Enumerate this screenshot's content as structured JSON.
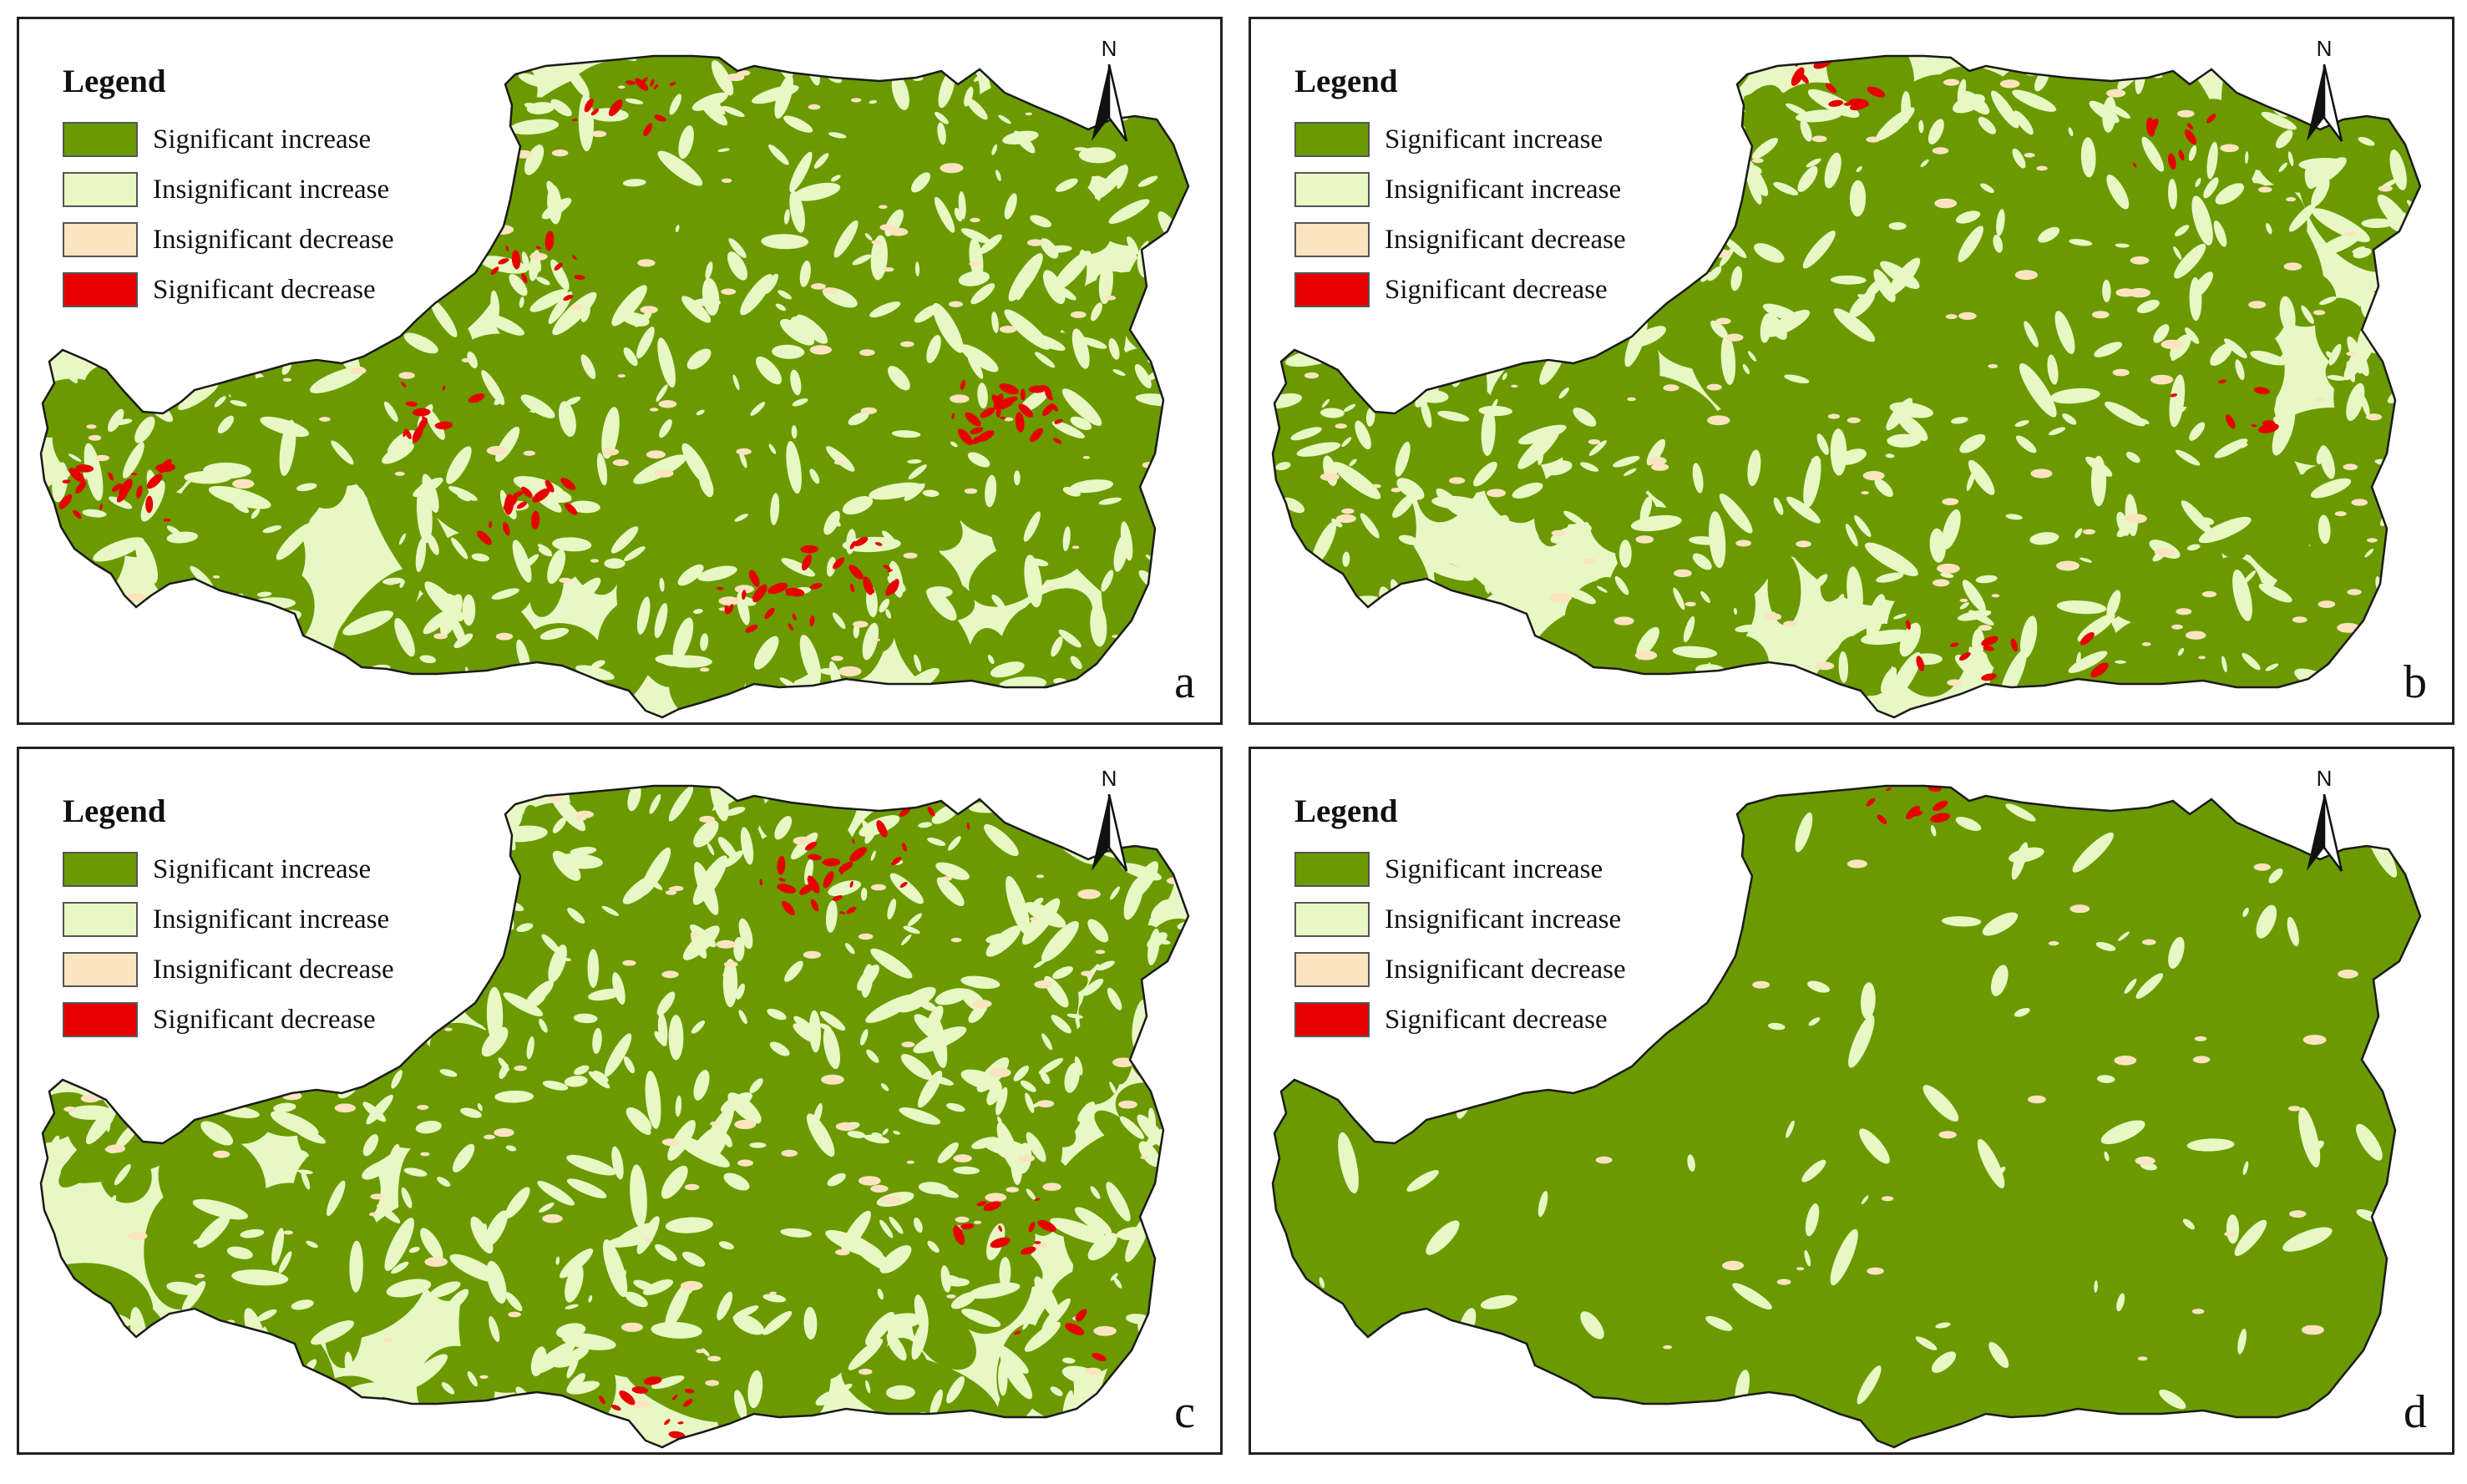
{
  "legend": {
    "title": "Legend",
    "classes": [
      {
        "label": "Significant increase",
        "color": "#6a9a00"
      },
      {
        "label": "Insignificant increase",
        "color": "#e8f8c4"
      },
      {
        "label": "Insignificant decrease",
        "color": "#fbe4c0"
      },
      {
        "label": "Significant decrease",
        "color": "#e60000"
      }
    ]
  },
  "north_arrow": {
    "letter": "N"
  },
  "panels": [
    {
      "id": "a",
      "letter": "a",
      "share": {
        "significant_increase": 0.55,
        "insignificant_increase": 0.33,
        "insignificant_decrease": 0.05,
        "significant_decrease": 0.07
      }
    },
    {
      "id": "b",
      "letter": "b",
      "share": {
        "significant_increase": 0.6,
        "insignificant_increase": 0.33,
        "insignificant_decrease": 0.05,
        "significant_decrease": 0.02
      }
    },
    {
      "id": "c",
      "letter": "c",
      "share": {
        "significant_increase": 0.52,
        "insignificant_increase": 0.4,
        "insignificant_decrease": 0.05,
        "significant_decrease": 0.03
      }
    },
    {
      "id": "d",
      "letter": "d",
      "share": {
        "significant_increase": 0.9,
        "insignificant_increase": 0.08,
        "insignificant_decrease": 0.015,
        "significant_decrease": 0.005
      }
    }
  ]
}
